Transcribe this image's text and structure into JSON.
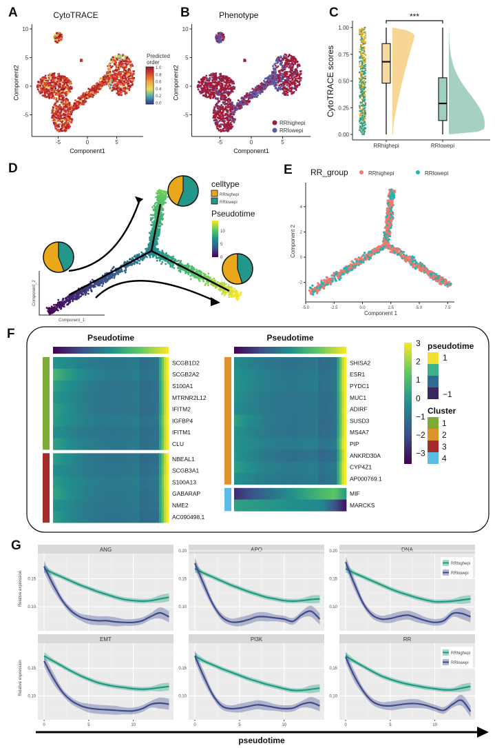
{
  "panel_labels": [
    "A",
    "B",
    "C",
    "D",
    "E",
    "F",
    "G"
  ],
  "chart_data": [
    {
      "type": "scatter",
      "title": "CytoTRACE",
      "xlabel": "Component1",
      "ylabel": "Component2",
      "xticks": [
        "-5",
        "0",
        "5"
      ],
      "yticks": [
        "10",
        "5",
        "0",
        "-5"
      ],
      "colorbar": {
        "title_line1": "Predicted",
        "title_line2": "order",
        "ticks": [
          "1.0",
          "0.8",
          "0.6",
          "0.4",
          "0.2",
          "0.0"
        ],
        "range": [
          0,
          1
        ],
        "colors": [
          "#2b3a8f",
          "#4aa6b5",
          "#e6e05a",
          "#f5a442",
          "#de4b2b",
          "#a01030"
        ]
      }
    },
    {
      "type": "scatter",
      "title": "Phenotype",
      "xlabel": "Component1",
      "ylabel": "Component2",
      "xticks": [
        "-5",
        "0",
        "5"
      ],
      "yticks": [
        "10",
        "5",
        "0",
        "-5"
      ],
      "legend": [
        {
          "name": "RRhighepi",
          "color": "#9e1b3a"
        },
        {
          "name": "RRlowepi",
          "color": "#5a5aa8"
        }
      ],
      "legend_position": "bottom-right"
    },
    {
      "type": "box",
      "ylabel": "CytoTRACE scores",
      "categories": [
        "RRhighepi",
        "RRlowepi"
      ],
      "yticks": [
        "1.00",
        "0.75",
        "0.50",
        "0.25",
        "0.00"
      ],
      "ylim": [
        0,
        1
      ],
      "boxes": [
        {
          "name": "RRhighepi",
          "min": 0.0,
          "q1": 0.48,
          "median": 0.68,
          "q3": 0.85,
          "max": 1.0,
          "color": "#f5d9a0",
          "violin_color": "#f5d08a"
        },
        {
          "name": "RRlowepi",
          "min": 0.0,
          "q1": 0.13,
          "median": 0.29,
          "q3": 0.53,
          "max": 1.0,
          "color": "#9fcfc0",
          "violin_color": "#9ccbbb"
        }
      ],
      "significance": "***",
      "strip_colors": [
        "#e8a91a",
        "#2a9d8f"
      ]
    },
    {
      "type": "scatter",
      "xlabel": "Component_1",
      "ylabel": "Component_2",
      "celltype_legend_title": "celltype",
      "celltype_legend": [
        {
          "name": "RRhighepi",
          "color": "#e9a81c"
        },
        {
          "name": "RRlowepi",
          "color": "#23978a"
        }
      ],
      "pseudotime_legend_title": "Pseudotime",
      "pseudotime_ticks": [
        "10",
        "5",
        "0"
      ],
      "pseudotime_range": [
        0,
        14
      ],
      "pies": [
        {
          "branch": "root",
          "RRhighepi": 0.56,
          "RRlowepi": 0.44
        },
        {
          "branch": "upper",
          "RRhighepi": 0.44,
          "RRlowepi": 0.56
        },
        {
          "branch": "right",
          "RRhighepi": 0.55,
          "RRlowepi": 0.45
        }
      ]
    },
    {
      "type": "scatter",
      "legend_title": "RR_group",
      "legend": [
        {
          "name": "RRhighepi",
          "color": "#f07a6e"
        },
        {
          "name": "RRlowepi",
          "color": "#1fb5b5"
        }
      ],
      "legend_position": "top",
      "xlabel": "Component 1",
      "ylabel": "Component 2",
      "xticks": [
        "-5.0",
        "-2.5",
        "0.0",
        "2.5",
        "5.0",
        "7.5"
      ],
      "yticks": [
        "4",
        "2",
        "0",
        "-2"
      ],
      "xlim": [
        -5,
        7.8
      ],
      "ylim": [
        -3.6,
        5.8
      ]
    },
    {
      "type": "heatmap",
      "titles": [
        "Pseudotime",
        "Pseudotime"
      ],
      "left_blocks": [
        {
          "cluster": "1",
          "genes": [
            "SCGB1D2",
            "SCGB2A2",
            "S100A1",
            "MTRNR2L12",
            "IFITM2",
            "IGFBP4",
            "IFITM1",
            "CLU"
          ]
        },
        {
          "cluster": "3",
          "genes": [
            "NBEAL1",
            "SCGB3A1",
            "S100A13",
            "GABARAP",
            "NME2",
            "AC090498.1"
          ]
        }
      ],
      "right_blocks": [
        {
          "cluster": "2",
          "genes": [
            "SHISA2",
            "ESR1",
            "PYDC1",
            "MUC1",
            "ADIRF",
            "SUSD3",
            "MS4A7",
            "PIP",
            "ANKRD30A",
            "CYP4Z1",
            "AP000769.1"
          ]
        },
        {
          "cluster": "4",
          "genes": [
            "MIF",
            "MARCKS"
          ]
        }
      ],
      "scale_ticks": [
        "3",
        "2",
        "1",
        "0",
        "−1",
        "−2",
        "−3"
      ],
      "scale_range": [
        -3,
        3
      ],
      "pseudotime_legend_title": "pseudotime",
      "pseudotime_legend_labels": [
        "1",
        "−1"
      ],
      "cluster_legend_title": "Cluster",
      "clusters": [
        {
          "label": "1",
          "color": "#7cac35"
        },
        {
          "label": "2",
          "color": "#e0922a"
        },
        {
          "label": "3",
          "color": "#a52a2a"
        },
        {
          "label": "4",
          "color": "#5bbde6"
        }
      ]
    },
    {
      "type": "line",
      "xlabel": "pseudotime",
      "ylabel": "Relative expression",
      "x": [
        0,
        1,
        2,
        3,
        4,
        5,
        6,
        7,
        8,
        9,
        10,
        11,
        12,
        13,
        14
      ],
      "xticks": [
        "0",
        "5",
        "10"
      ],
      "xlim": [
        -0.7,
        14.5
      ],
      "ylim": [
        0.057,
        0.195
      ],
      "legend": [
        {
          "name": "RRhighepi",
          "color": "#1b9a7e"
        },
        {
          "name": "RRlowepi",
          "color": "#3d4a8c"
        }
      ],
      "facets": [
        {
          "name": "ANG",
          "yticks": [
            "0.15",
            "0.10"
          ],
          "RRhighepi": [
            0.168,
            0.16,
            0.153,
            0.146,
            0.139,
            0.133,
            0.127,
            0.122,
            0.117,
            0.113,
            0.111,
            0.11,
            0.111,
            0.114,
            0.117
          ],
          "RRlowepi": [
            0.172,
            0.14,
            0.112,
            0.093,
            0.082,
            0.077,
            0.075,
            0.075,
            0.073,
            0.072,
            0.072,
            0.075,
            0.083,
            0.089,
            0.082
          ]
        },
        {
          "name": "APO",
          "yticks": [
            "0.20",
            "0.15",
            "0.10"
          ],
          "RRhighepi": [
            0.168,
            0.16,
            0.153,
            0.146,
            0.139,
            0.133,
            0.127,
            0.122,
            0.117,
            0.114,
            0.111,
            0.11,
            0.111,
            0.113,
            0.114
          ],
          "RRlowepi": [
            0.178,
            0.14,
            0.105,
            0.082,
            0.073,
            0.073,
            0.077,
            0.082,
            0.082,
            0.08,
            0.078,
            0.074,
            0.086,
            0.092,
            0.078
          ]
        },
        {
          "name": "DNA",
          "yticks": [
            "0.20",
            "0.15",
            "0.10"
          ],
          "legend": true,
          "RRhighepi": [
            0.168,
            0.16,
            0.153,
            0.146,
            0.139,
            0.132,
            0.126,
            0.121,
            0.116,
            0.112,
            0.109,
            0.109,
            0.11,
            0.112,
            0.114
          ],
          "RRlowepi": [
            0.18,
            0.14,
            0.105,
            0.085,
            0.078,
            0.079,
            0.083,
            0.085,
            0.08,
            0.075,
            0.072,
            0.075,
            0.088,
            0.088,
            0.082
          ]
        },
        {
          "name": "EMT",
          "yticks": [
            "0.15",
            "0.10"
          ],
          "RRhighepi": [
            0.172,
            0.163,
            0.154,
            0.145,
            0.137,
            0.13,
            0.124,
            0.12,
            0.117,
            0.115,
            0.113,
            0.112,
            0.113,
            0.115,
            0.117
          ],
          "RRlowepi": [
            0.163,
            0.133,
            0.108,
            0.092,
            0.083,
            0.078,
            0.076,
            0.075,
            0.074,
            0.073,
            0.073,
            0.077,
            0.085,
            0.087,
            0.085
          ]
        },
        {
          "name": "PI3K",
          "yticks": [
            "0.15",
            "0.10"
          ],
          "RRhighepi": [
            0.172,
            0.163,
            0.156,
            0.149,
            0.143,
            0.137,
            0.131,
            0.126,
            0.121,
            0.117,
            0.113,
            0.11,
            0.11,
            0.112,
            0.114
          ],
          "RRlowepi": [
            0.172,
            0.135,
            0.102,
            0.082,
            0.077,
            0.078,
            0.081,
            0.084,
            0.082,
            0.079,
            0.077,
            0.078,
            0.085,
            0.088,
            0.082
          ]
        },
        {
          "name": "RR",
          "yticks": [
            "0.15",
            "0.10"
          ],
          "legend": true,
          "RRhighepi": [
            0.172,
            0.162,
            0.153,
            0.144,
            0.136,
            0.13,
            0.125,
            0.121,
            0.118,
            0.115,
            0.113,
            0.111,
            0.111,
            0.114,
            0.117
          ],
          "RRlowepi": [
            0.17,
            0.135,
            0.108,
            0.09,
            0.083,
            0.082,
            0.084,
            0.086,
            0.086,
            0.083,
            0.078,
            0.074,
            0.085,
            0.092,
            0.072
          ]
        }
      ]
    }
  ]
}
